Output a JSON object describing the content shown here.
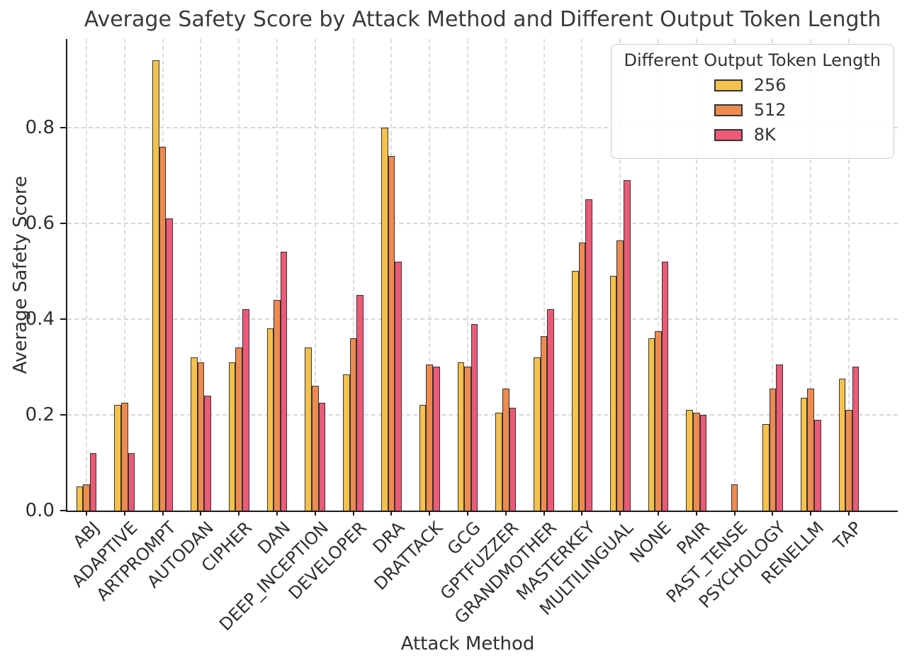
{
  "title": "Average Safety Score by Attack Method and Different Output Token Length",
  "chart_data": {
    "type": "bar",
    "title": "Average Safety Score by Attack Method and Different Output Token Length",
    "xlabel": "Attack Method",
    "ylabel": "Average Safety Score",
    "ylim": [
      0,
      0.985
    ],
    "ytick_labels": [
      "0.0",
      "0.2",
      "0.4",
      "0.6",
      "0.8"
    ],
    "ytick_values": [
      0,
      0.2,
      0.4,
      0.6,
      0.8
    ],
    "grid": "dashed horizontal and vertical gridlines",
    "legend_title": "Different Output Token Length",
    "legend_position": "upper right",
    "bar_edge_color": "#333333",
    "categories": [
      "ABJ",
      "ADAPTIVE",
      "ARTPROMPT",
      "AUTODAN",
      "CIPHER",
      "DAN",
      "DEEP_INCEPTION",
      "DEVELOPER",
      "DRA",
      "DRATTACK",
      "GCG",
      "GPTFUZZER",
      "GRANDMOTHER",
      "MASTERKEY",
      "MULTILINGUAL",
      "NONE",
      "PAIR",
      "PAST_TENSE",
      "PSYCHOLOGY",
      "RENELLM",
      "TAP"
    ],
    "series": [
      {
        "name": "256",
        "color": "#F7C24B",
        "values": [
          0.05,
          0.22,
          0.94,
          0.32,
          0.31,
          0.38,
          0.34,
          0.285,
          0.8,
          0.22,
          0.31,
          0.205,
          0.32,
          0.5,
          0.49,
          0.36,
          0.21,
          0.0,
          0.18,
          0.235,
          0.275
        ]
      },
      {
        "name": "512",
        "color": "#EF8A50",
        "values": [
          0.055,
          0.225,
          0.76,
          0.31,
          0.34,
          0.44,
          0.26,
          0.36,
          0.74,
          0.305,
          0.3,
          0.255,
          0.365,
          0.56,
          0.565,
          0.375,
          0.205,
          0.055,
          0.255,
          0.255,
          0.21
        ]
      },
      {
        "name": "8K",
        "color": "#EC5A77",
        "values": [
          0.12,
          0.12,
          0.61,
          0.24,
          0.42,
          0.54,
          0.225,
          0.45,
          0.52,
          0.3,
          0.39,
          0.215,
          0.42,
          0.65,
          0.69,
          0.52,
          0.2,
          0.0,
          0.305,
          0.19,
          0.3
        ]
      }
    ]
  }
}
